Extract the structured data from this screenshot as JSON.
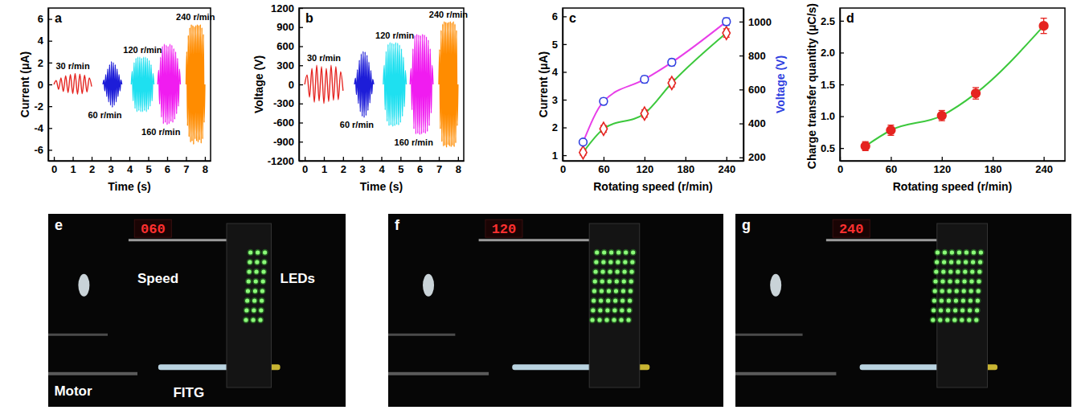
{
  "chart_data": [
    {
      "type": "line",
      "panel": "a",
      "xlabel": "Time (s)",
      "ylabel": "Current (μA)",
      "xlim": [
        -0.3,
        8.3
      ],
      "xticks": [
        0,
        1,
        2,
        3,
        4,
        5,
        6,
        7,
        8
      ],
      "ylim": [
        -7,
        7
      ],
      "yticks": [
        -6,
        -4,
        -2,
        0,
        2,
        4,
        6
      ],
      "series": [
        {
          "name": "30 r/min",
          "color": "#e52420",
          "x": [
            0,
            0.125,
            0.25,
            0.375,
            0.5,
            0.625,
            0.75,
            0.875,
            1,
            1.125,
            1.25,
            1.375,
            1.5,
            1.625,
            1.75,
            1.875,
            2
          ],
          "values": [
            0,
            0.35,
            -0.45,
            0.6,
            -0.65,
            0.8,
            -0.75,
            0.9,
            -0.85,
            1.0,
            -0.9,
            0.95,
            -0.85,
            0.85,
            -0.7,
            0.6,
            -0.2
          ]
        },
        {
          "name": "60 r/min",
          "color": "#1d1dd8",
          "x": [
            2.6,
            2.65,
            2.7,
            2.75,
            2.8,
            2.85,
            2.9,
            2.95,
            3,
            3.05,
            3.1,
            3.15,
            3.2,
            3.25,
            3.3,
            3.35,
            3.4,
            3.45,
            3.5,
            3.55,
            3.6
          ],
          "values": [
            0,
            0.4,
            -0.6,
            0.9,
            -1.1,
            1.4,
            -1.6,
            1.8,
            -1.9,
            2.1,
            -2.1,
            2.0,
            -1.9,
            1.8,
            -1.6,
            1.4,
            -1.1,
            0.9,
            -0.6,
            0.4,
            0
          ]
        },
        {
          "name": "120 r/min",
          "color": "#1ee0f0",
          "x": [
            4.1,
            4.15,
            4.2,
            4.25,
            4.3,
            4.35,
            4.4,
            4.45,
            4.5,
            4.55,
            4.6,
            4.65,
            4.7,
            4.75,
            4.8,
            4.85,
            4.9,
            4.95,
            5,
            5.05,
            5.1,
            5.15,
            5.2,
            5.25,
            5.3
          ],
          "values": [
            0,
            1.2,
            -1.5,
            2.0,
            -2.2,
            2.4,
            -2.5,
            2.5,
            -2.4,
            2.5,
            -2.5,
            2.4,
            -2.5,
            2.5,
            -2.4,
            2.5,
            -2.5,
            2.4,
            -2.3,
            2.2,
            -2.0,
            1.8,
            -1.5,
            1.0,
            0
          ]
        },
        {
          "name": "160 r/min",
          "color": "#f01cf0",
          "x": [
            5.5,
            5.55,
            5.6,
            5.65,
            5.7,
            5.75,
            5.8,
            5.85,
            5.9,
            5.95,
            6,
            6.05,
            6.1,
            6.15,
            6.2,
            6.25,
            6.3,
            6.35,
            6.4,
            6.45,
            6.5,
            6.55,
            6.6,
            6.65,
            6.7
          ],
          "values": [
            0,
            1.3,
            -1.8,
            2.5,
            -3.0,
            3.5,
            -3.6,
            3.7,
            -3.5,
            3.6,
            -3.7,
            3.5,
            -3.6,
            3.7,
            -3.4,
            3.6,
            -3.5,
            3.3,
            -3.2,
            3.0,
            -2.7,
            2.4,
            -2.0,
            1.4,
            0
          ]
        },
        {
          "name": "240 r/min",
          "color": "#ff8c00",
          "x": [
            7,
            7.04,
            7.08,
            7.12,
            7.16,
            7.2,
            7.24,
            7.28,
            7.32,
            7.36,
            7.4,
            7.44,
            7.48,
            7.52,
            7.56,
            7.6,
            7.64,
            7.68,
            7.72,
            7.76,
            7.8,
            7.84,
            7.88,
            7.92,
            7.96,
            8
          ],
          "values": [
            0,
            3.0,
            -3.8,
            4.5,
            -4.8,
            5.2,
            -5.3,
            5.5,
            -5.2,
            5.4,
            -5.5,
            5.3,
            -5.0,
            5.4,
            -5.2,
            5.5,
            -5.3,
            5.4,
            -5.1,
            5.5,
            -5.4,
            5.2,
            -5.0,
            4.6,
            -3.5,
            0
          ]
        }
      ]
    },
    {
      "type": "line",
      "panel": "b",
      "xlabel": "Time (s)",
      "ylabel": "Voltage (V)",
      "xlim": [
        -0.3,
        8.3
      ],
      "xticks": [
        0,
        1,
        2,
        3,
        4,
        5,
        6,
        7,
        8
      ],
      "ylim": [
        -1200,
        1200
      ],
      "yticks": [
        -1200,
        -900,
        -600,
        -300,
        0,
        300,
        600,
        900,
        1200
      ],
      "series": [
        {
          "name": "30 r/min",
          "color": "#e52420",
          "x": [
            0,
            0.125,
            0.25,
            0.375,
            0.5,
            0.625,
            0.75,
            0.875,
            1,
            1.125,
            1.25,
            1.375,
            1.5,
            1.625,
            1.75,
            1.875,
            2
          ],
          "values": [
            0,
            150,
            -200,
            250,
            -280,
            300,
            -260,
            280,
            -300,
            250,
            -270,
            300,
            -250,
            280,
            -240,
            200,
            -100
          ]
        },
        {
          "name": "60 r/min",
          "color": "#1d1dd8",
          "x": [
            2.6,
            2.65,
            2.7,
            2.75,
            2.8,
            2.85,
            2.9,
            2.95,
            3,
            3.05,
            3.1,
            3.15,
            3.2,
            3.25,
            3.3,
            3.35,
            3.4,
            3.45,
            3.5,
            3.55,
            3.6
          ],
          "values": [
            0,
            100,
            -160,
            230,
            -300,
            380,
            -430,
            480,
            -500,
            520,
            -520,
            510,
            -490,
            460,
            -410,
            350,
            -290,
            220,
            -150,
            80,
            0
          ]
        },
        {
          "name": "120 r/min",
          "color": "#1ee0f0",
          "x": [
            4.1,
            4.15,
            4.2,
            4.25,
            4.3,
            4.35,
            4.4,
            4.45,
            4.5,
            4.55,
            4.6,
            4.65,
            4.7,
            4.75,
            4.8,
            4.85,
            4.9,
            4.95,
            5,
            5.05,
            5.1,
            5.15,
            5.2,
            5.25,
            5.3
          ],
          "values": [
            0,
            300,
            -400,
            520,
            -580,
            630,
            -650,
            660,
            -640,
            650,
            -660,
            640,
            -650,
            660,
            -630,
            650,
            -640,
            620,
            -600,
            560,
            -500,
            430,
            -350,
            220,
            0
          ]
        },
        {
          "name": "160 r/min",
          "color": "#f01cf0",
          "x": [
            5.5,
            5.55,
            5.6,
            5.65,
            5.7,
            5.75,
            5.8,
            5.85,
            5.9,
            5.95,
            6,
            6.05,
            6.1,
            6.15,
            6.2,
            6.25,
            6.3,
            6.35,
            6.4,
            6.45,
            6.5,
            6.55,
            6.6,
            6.65,
            6.7
          ],
          "values": [
            0,
            250,
            -400,
            560,
            -700,
            770,
            -780,
            790,
            -770,
            780,
            -790,
            770,
            -780,
            790,
            -760,
            780,
            -770,
            750,
            -740,
            700,
            -650,
            560,
            -450,
            300,
            0
          ]
        },
        {
          "name": "240 r/min",
          "color": "#ff8c00",
          "x": [
            7,
            7.04,
            7.08,
            7.12,
            7.16,
            7.2,
            7.24,
            7.28,
            7.32,
            7.36,
            7.4,
            7.44,
            7.48,
            7.52,
            7.56,
            7.6,
            7.64,
            7.68,
            7.72,
            7.76,
            7.8,
            7.84,
            7.88,
            7.92,
            7.96,
            8
          ],
          "values": [
            0,
            550,
            -700,
            850,
            -900,
            950,
            -970,
            990,
            -960,
            980,
            -990,
            970,
            -950,
            980,
            -970,
            990,
            -980,
            970,
            -960,
            990,
            -980,
            950,
            -920,
            850,
            -650,
            0
          ]
        }
      ]
    },
    {
      "type": "line",
      "panel": "c",
      "xlabel": "Rotating speed (r/min)",
      "ylabel": "Current (μA)",
      "y2label": "Voltage (V)",
      "x": [
        30,
        60,
        120,
        160,
        240
      ],
      "xlim": [
        0,
        265
      ],
      "xticks": [
        0,
        60,
        120,
        180,
        240
      ],
      "ylim": [
        0.8,
        6.3
      ],
      "yticks": [
        1,
        2,
        3,
        4,
        5,
        6
      ],
      "y2lim": [
        180,
        1080
      ],
      "y2ticks": [
        200,
        400,
        600,
        800,
        1000
      ],
      "series": [
        {
          "color": "#e52420",
          "marker": "open_diamond",
          "values": [
            1.1,
            1.95,
            2.5,
            3.6,
            5.4
          ],
          "errors": [
            0.1,
            0.12,
            0.13,
            0.14,
            0.15
          ]
        },
        {
          "color": "#2f3fe0",
          "marker": "open_circle",
          "axis": "y2",
          "values": [
            290,
            530,
            660,
            760,
            1000
          ],
          "errors": [
            12,
            18,
            20,
            20,
            22
          ]
        }
      ]
    },
    {
      "type": "line",
      "panel": "d",
      "xlabel": "Rotating speed (r/min)",
      "ylabel": "Charge transfer quantity (μC/s)",
      "x": [
        30,
        60,
        120,
        160,
        240
      ],
      "xlim": [
        0,
        265
      ],
      "xticks": [
        0,
        60,
        120,
        180,
        240
      ],
      "ylim": [
        0.3,
        2.7
      ],
      "yticks": [
        0.5,
        {
          "value": 1,
          "label": "1.0"
        },
        1.5,
        {
          "value": 2,
          "label": "2.0"
        },
        2.5
      ],
      "series": [
        {
          "color": "#e52420",
          "marker": "circle",
          "values": [
            0.53,
            0.78,
            1.01,
            1.36,
            2.42
          ],
          "errors": [
            0.07,
            0.08,
            0.08,
            0.09,
            0.12
          ]
        }
      ]
    }
  ],
  "photos": [
    {
      "panel": "e",
      "speed_display": "060",
      "labels": {
        "speed": "Speed",
        "leds": "LEDs",
        "motor": "Motor",
        "device": "FITG"
      }
    },
    {
      "panel": "f",
      "speed_display": "120"
    },
    {
      "panel": "g",
      "speed_display": "240"
    }
  ]
}
